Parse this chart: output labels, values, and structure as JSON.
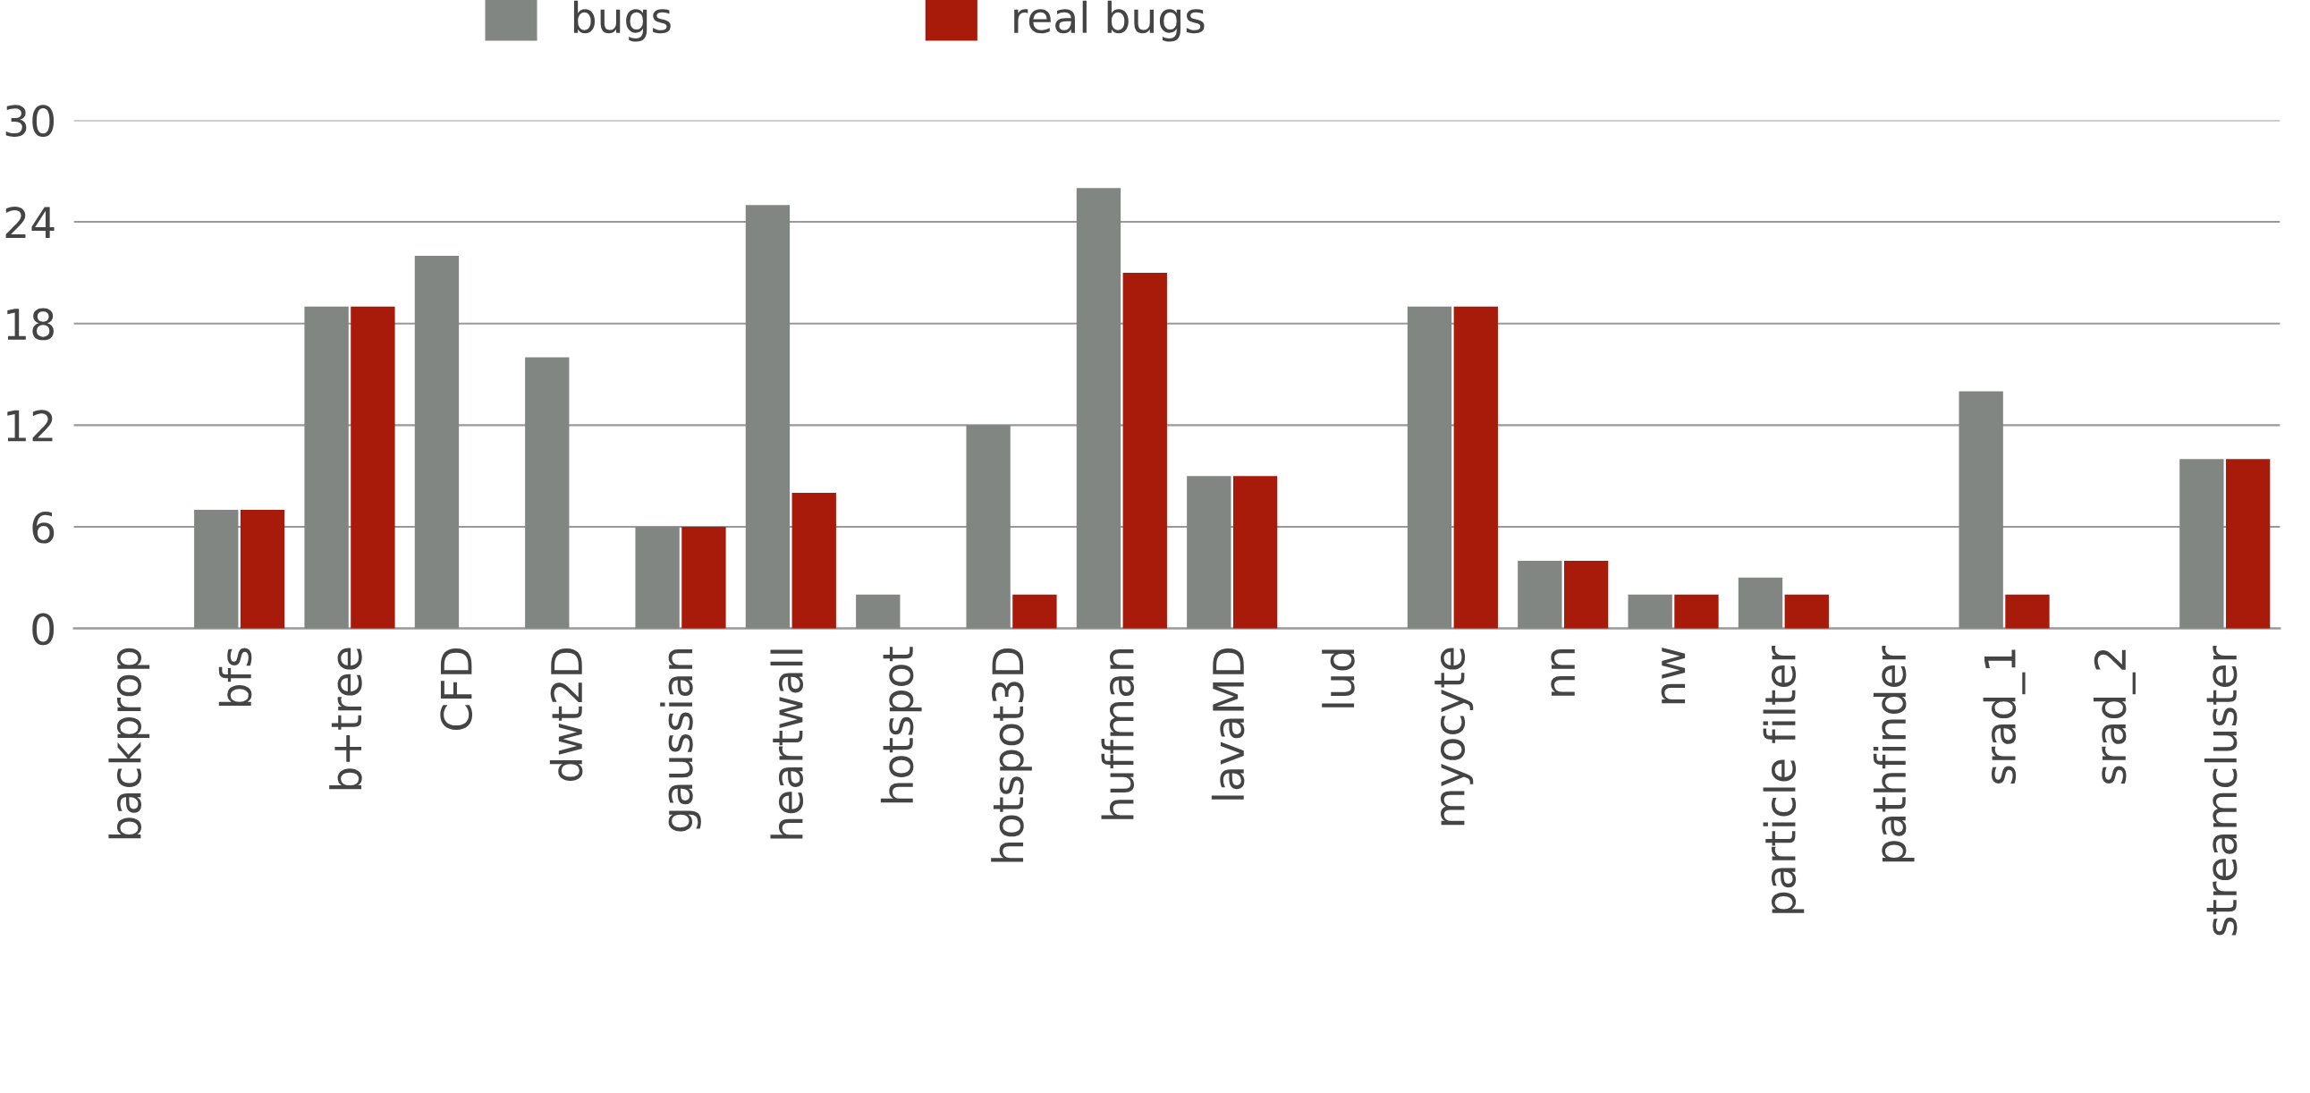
{
  "chart_data": {
    "type": "bar",
    "categories": [
      "backprop",
      "bfs",
      "b+tree",
      "CFD",
      "dwt2D",
      "gaussian",
      "heartwall",
      "hotspot",
      "hotspot3D",
      "huffman",
      "lavaMD",
      "lud",
      "myocyte",
      "nn",
      "nw",
      "particle filter",
      "pathfinder",
      "srad_1",
      "srad_2",
      "streamcluster"
    ],
    "series": [
      {
        "name": "bugs",
        "color": "#818683",
        "values": [
          0,
          7,
          19,
          22,
          16,
          6,
          25,
          2,
          12,
          26,
          9,
          0,
          19,
          4,
          2,
          3,
          0,
          14,
          0,
          10
        ]
      },
      {
        "name": "real bugs",
        "color": "#a81a0a",
        "values": [
          0,
          7,
          19,
          0,
          0,
          6,
          8,
          0,
          2,
          21,
          9,
          0,
          19,
          4,
          2,
          2,
          0,
          2,
          0,
          10
        ]
      }
    ],
    "ylim": [
      0,
      30
    ],
    "yticks": [
      0,
      6,
      12,
      18,
      24,
      30
    ],
    "grid": "y",
    "legend": "top"
  }
}
